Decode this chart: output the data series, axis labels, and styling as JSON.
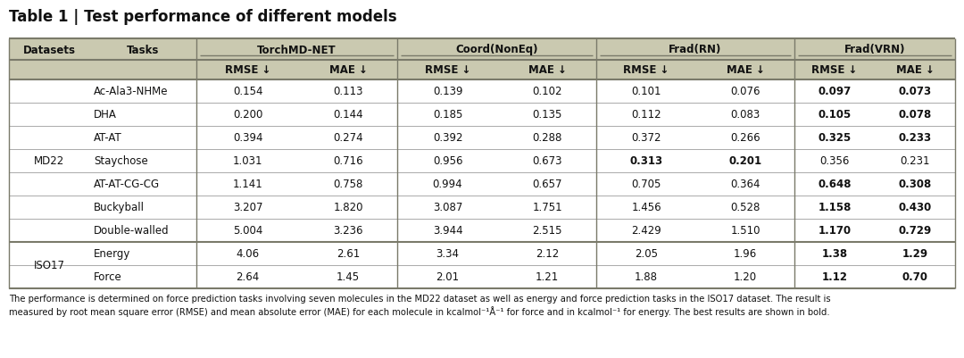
{
  "title": "Table 1 | Test performance of different models",
  "footer_line1": "The performance is determined on force prediction tasks involving seven molecules in the MD22 dataset as well as energy and force prediction tasks in the ISO17 dataset. The result is",
  "footer_line2": "measured by root mean square error (RMSE) and mean absolute error (MAE) for each molecule in kcalmol⁻¹Å⁻¹ for force and in kcalmol⁻¹ for energy. The best results are shown in bold.",
  "col_groups": [
    "TorchMD-NET",
    "Coord(NonEq)",
    "Frad(RN)",
    "Frad(VRN)"
  ],
  "sub_headers": [
    "RMSE ↓",
    "MAE ↓",
    "RMSE ↓",
    "MAE ↓",
    "RMSE ↓",
    "MAE ↓",
    "RMSE ↓",
    "MAE ↓"
  ],
  "datasets_md22": [
    "Ac-Ala3-NHMe",
    "DHA",
    "AT-AT",
    "Staychose",
    "AT-AT-CG-CG",
    "Buckyball",
    "Double-walled"
  ],
  "datasets_iso17": [
    "Energy",
    "Force"
  ],
  "data": {
    "Ac-Ala3-NHMe": [
      [
        "0.154",
        "0.113",
        "0.139",
        "0.102",
        "0.101",
        "0.076",
        "0.097",
        "0.073"
      ],
      [
        false,
        false,
        false,
        false,
        false,
        false,
        true,
        true
      ]
    ],
    "DHA": [
      [
        "0.200",
        "0.144",
        "0.185",
        "0.135",
        "0.112",
        "0.083",
        "0.105",
        "0.078"
      ],
      [
        false,
        false,
        false,
        false,
        false,
        false,
        true,
        true
      ]
    ],
    "AT-AT": [
      [
        "0.394",
        "0.274",
        "0.392",
        "0.288",
        "0.372",
        "0.266",
        "0.325",
        "0.233"
      ],
      [
        false,
        false,
        false,
        false,
        false,
        false,
        true,
        true
      ]
    ],
    "Staychose": [
      [
        "1.031",
        "0.716",
        "0.956",
        "0.673",
        "0.313",
        "0.201",
        "0.356",
        "0.231"
      ],
      [
        false,
        false,
        false,
        false,
        true,
        true,
        false,
        false
      ]
    ],
    "AT-AT-CG-CG": [
      [
        "1.141",
        "0.758",
        "0.994",
        "0.657",
        "0.705",
        "0.364",
        "0.648",
        "0.308"
      ],
      [
        false,
        false,
        false,
        false,
        false,
        false,
        true,
        true
      ]
    ],
    "Buckyball": [
      [
        "3.207",
        "1.820",
        "3.087",
        "1.751",
        "1.456",
        "0.528",
        "1.158",
        "0.430"
      ],
      [
        false,
        false,
        false,
        false,
        false,
        false,
        true,
        true
      ]
    ],
    "Double-walled": [
      [
        "5.004",
        "3.236",
        "3.944",
        "2.515",
        "2.429",
        "1.510",
        "1.170",
        "0.729"
      ],
      [
        false,
        false,
        false,
        false,
        false,
        false,
        true,
        true
      ]
    ],
    "Energy": [
      [
        "4.06",
        "2.61",
        "3.34",
        "2.12",
        "2.05",
        "1.96",
        "1.38",
        "1.29"
      ],
      [
        false,
        false,
        false,
        false,
        false,
        false,
        true,
        true
      ]
    ],
    "Force": [
      [
        "2.64",
        "1.45",
        "2.01",
        "1.21",
        "1.88",
        "1.20",
        "1.12",
        "0.70"
      ],
      [
        false,
        false,
        false,
        false,
        false,
        false,
        true,
        true
      ]
    ]
  },
  "bg_header": "#cac9b0",
  "bg_white": "#ffffff",
  "line_dark": "#7a7a6a",
  "line_thin": "#aaaaaa",
  "text_color": "#111111",
  "header_fontsize": 8.5,
  "data_fontsize": 8.5,
  "title_fontsize": 12.0,
  "footer_fontsize": 7.2
}
